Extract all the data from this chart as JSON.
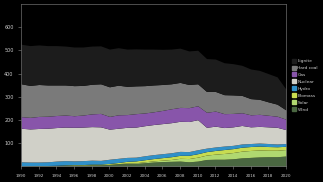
{
  "years": [
    1990,
    1991,
    1992,
    1993,
    1994,
    1995,
    1996,
    1997,
    1998,
    1999,
    2000,
    2001,
    2002,
    2003,
    2004,
    2005,
    2006,
    2007,
    2008,
    2009,
    2010,
    2011,
    2012,
    2013,
    2014,
    2015,
    2016,
    2017,
    2018,
    2019,
    2020
  ],
  "layers": [
    {
      "label": "Wind",
      "color": "#4a6741",
      "values": [
        1,
        2,
        3,
        3,
        4,
        5,
        5,
        5,
        6,
        6,
        8,
        11,
        12,
        12,
        15,
        18,
        20,
        21,
        22,
        19,
        22,
        29,
        30,
        30,
        32,
        36,
        38,
        40,
        41,
        41,
        44
      ]
    },
    {
      "label": "Solar",
      "color": "#b0d870",
      "values": [
        0,
        0,
        0,
        0,
        0,
        0,
        0,
        0,
        0,
        0,
        0,
        0,
        2,
        3,
        4,
        5,
        6,
        8,
        12,
        14,
        17,
        19,
        22,
        25,
        27,
        29,
        30,
        30,
        28,
        28,
        28
      ]
    },
    {
      "label": "Biomass",
      "color": "#c8dc50",
      "values": [
        0,
        0,
        0,
        0,
        0,
        1,
        2,
        2,
        3,
        3,
        4,
        5,
        7,
        8,
        9,
        10,
        11,
        12,
        13,
        14,
        15,
        15,
        16,
        17,
        17,
        17,
        17,
        17,
        16,
        15,
        14
      ]
    },
    {
      "label": "Hydro",
      "color": "#3090c8",
      "values": [
        18,
        16,
        15,
        16,
        18,
        18,
        16,
        17,
        17,
        16,
        18,
        18,
        17,
        16,
        17,
        17,
        17,
        17,
        17,
        16,
        17,
        15,
        15,
        15,
        14,
        14,
        13,
        13,
        13,
        12,
        12
      ]
    },
    {
      "label": "Nuclear",
      "color": "#d0d0c8",
      "values": [
        145,
        143,
        145,
        145,
        145,
        145,
        145,
        145,
        145,
        145,
        130,
        130,
        130,
        130,
        130,
        130,
        130,
        130,
        130,
        130,
        130,
        90,
        90,
        80,
        80,
        80,
        72,
        72,
        72,
        72,
        60
      ]
    },
    {
      "label": "Gas",
      "color": "#8855aa",
      "values": [
        50,
        50,
        52,
        52,
        52,
        52,
        50,
        52,
        55,
        58,
        55,
        58,
        55,
        58,
        55,
        55,
        57,
        60,
        60,
        60,
        60,
        65,
        65,
        60,
        58,
        55,
        52,
        52,
        50,
        48,
        45
      ]
    },
    {
      "label": "Hard coal",
      "color": "#7a7a7a",
      "values": [
        142,
        138,
        138,
        135,
        132,
        130,
        130,
        128,
        128,
        128,
        128,
        128,
        122,
        120,
        118,
        116,
        112,
        108,
        108,
        100,
        95,
        90,
        85,
        82,
        80,
        75,
        70,
        65,
        58,
        52,
        40
      ]
    },
    {
      "label": "Lignite",
      "color": "#1c1c1c",
      "values": [
        171,
        172,
        171,
        170,
        170,
        168,
        167,
        166,
        165,
        164,
        163,
        162,
        161,
        160,
        158,
        155,
        152,
        150,
        148,
        145,
        145,
        142,
        140,
        138,
        135,
        130,
        128,
        125,
        122,
        118,
        90
      ]
    }
  ],
  "ylim": [
    0,
    700
  ],
  "yticks": [
    100,
    200,
    300,
    400,
    500,
    600
  ],
  "bg_color": "#000000",
  "plot_bg": "#000000",
  "text_color": "#cccccc",
  "spine_color": "#888888",
  "tick_color": "#888888"
}
